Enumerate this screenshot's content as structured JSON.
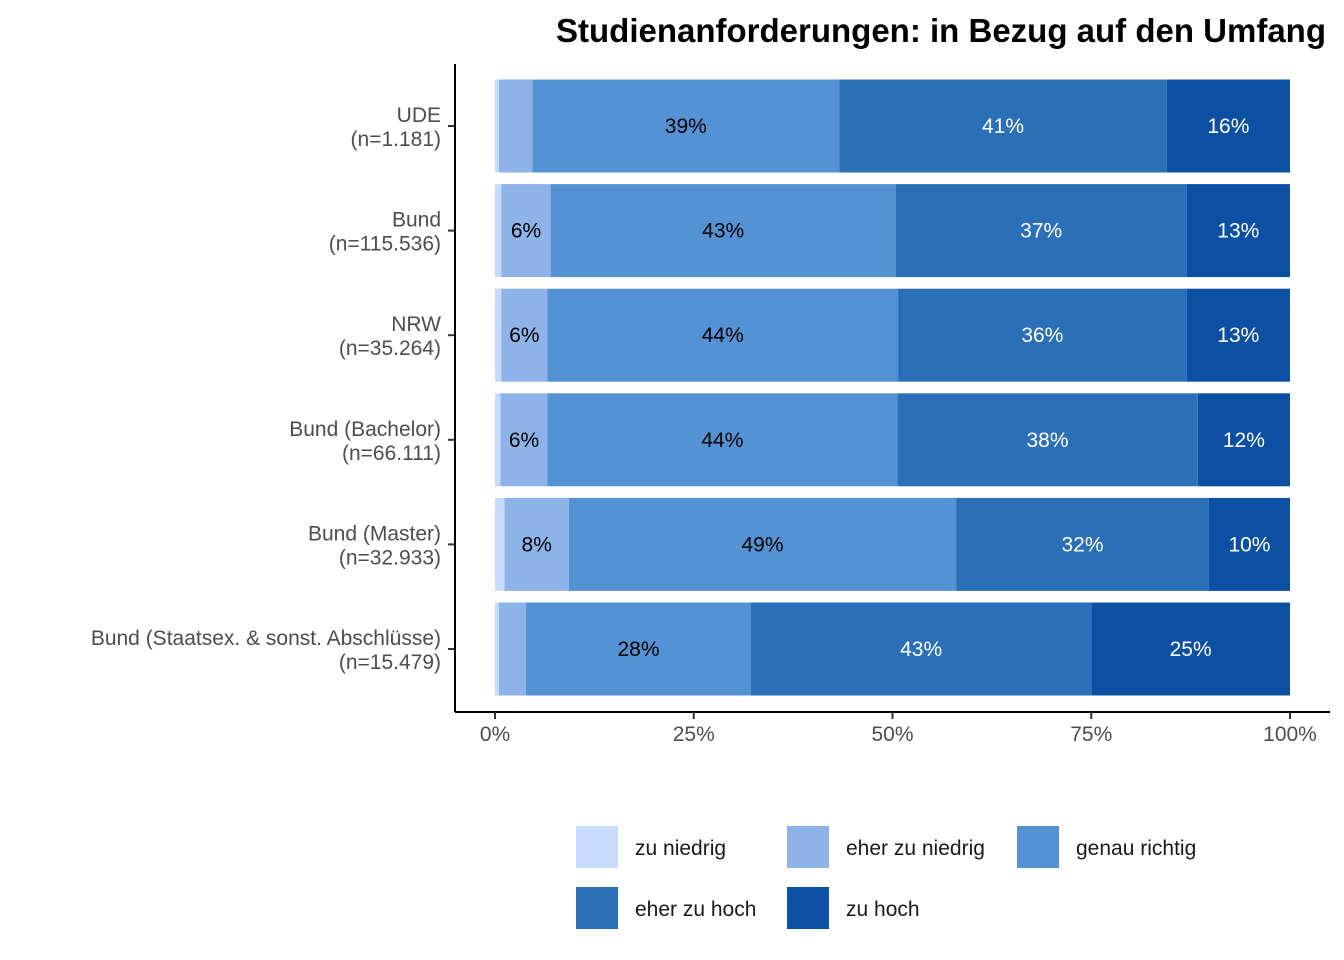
{
  "chart_data": {
    "type": "bar",
    "orientation": "horizontal",
    "stacked": true,
    "title": "Studienanforderungen: in Bezug auf den Umfang",
    "xlabel": "",
    "ylabel": "",
    "xlim": [
      0,
      100
    ],
    "x_ticks": [
      "0%",
      "25%",
      "50%",
      "75%",
      "100%"
    ],
    "grid": false,
    "legend_position": "bottom",
    "categories": [
      "UDE\n(n=1.181)",
      "Bund\n(n=115.536)",
      "NRW\n(n=35.264)",
      "Bund (Bachelor)\n(n=66.111)",
      "Bund (Master)\n(n=32.933)",
      "Bund (Staatsex. & sonst. Abschlüsse)\n(n=15.479)"
    ],
    "series": [
      {
        "name": "zu niedrig",
        "color": "#c6dbfd",
        "values": [
          0.5,
          0.8,
          0.8,
          0.7,
          1.2,
          0.5
        ],
        "labels": [
          "",
          "",
          "",
          "",
          "",
          ""
        ],
        "label_color": "#000000"
      },
      {
        "name": "eher zu niedrig",
        "color": "#8db3e9",
        "values": [
          4.2,
          6.2,
          5.8,
          5.9,
          8.1,
          3.4
        ],
        "labels": [
          "",
          "6%",
          "6%",
          "6%",
          "8%",
          ""
        ],
        "label_color": "#000000"
      },
      {
        "name": "genau richtig",
        "color": "#5592d3",
        "values": [
          38.6,
          43.4,
          44.1,
          44.0,
          48.7,
          28.3
        ],
        "labels": [
          "39%",
          "43%",
          "44%",
          "44%",
          "49%",
          "28%"
        ],
        "label_color": "#000000"
      },
      {
        "name": "eher zu hoch",
        "color": "#2c6fb9",
        "values": [
          41.2,
          36.6,
          36.3,
          37.8,
          31.8,
          42.8
        ],
        "labels": [
          "41%",
          "37%",
          "36%",
          "38%",
          "32%",
          "43%"
        ],
        "label_color": "#ffffff"
      },
      {
        "name": "zu hoch",
        "color": "#0c50a3",
        "values": [
          15.5,
          13.0,
          13.0,
          11.6,
          10.2,
          25.0
        ],
        "labels": [
          "16%",
          "13%",
          "13%",
          "12%",
          "10%",
          "25%"
        ],
        "label_color": "#ffffff"
      }
    ]
  }
}
